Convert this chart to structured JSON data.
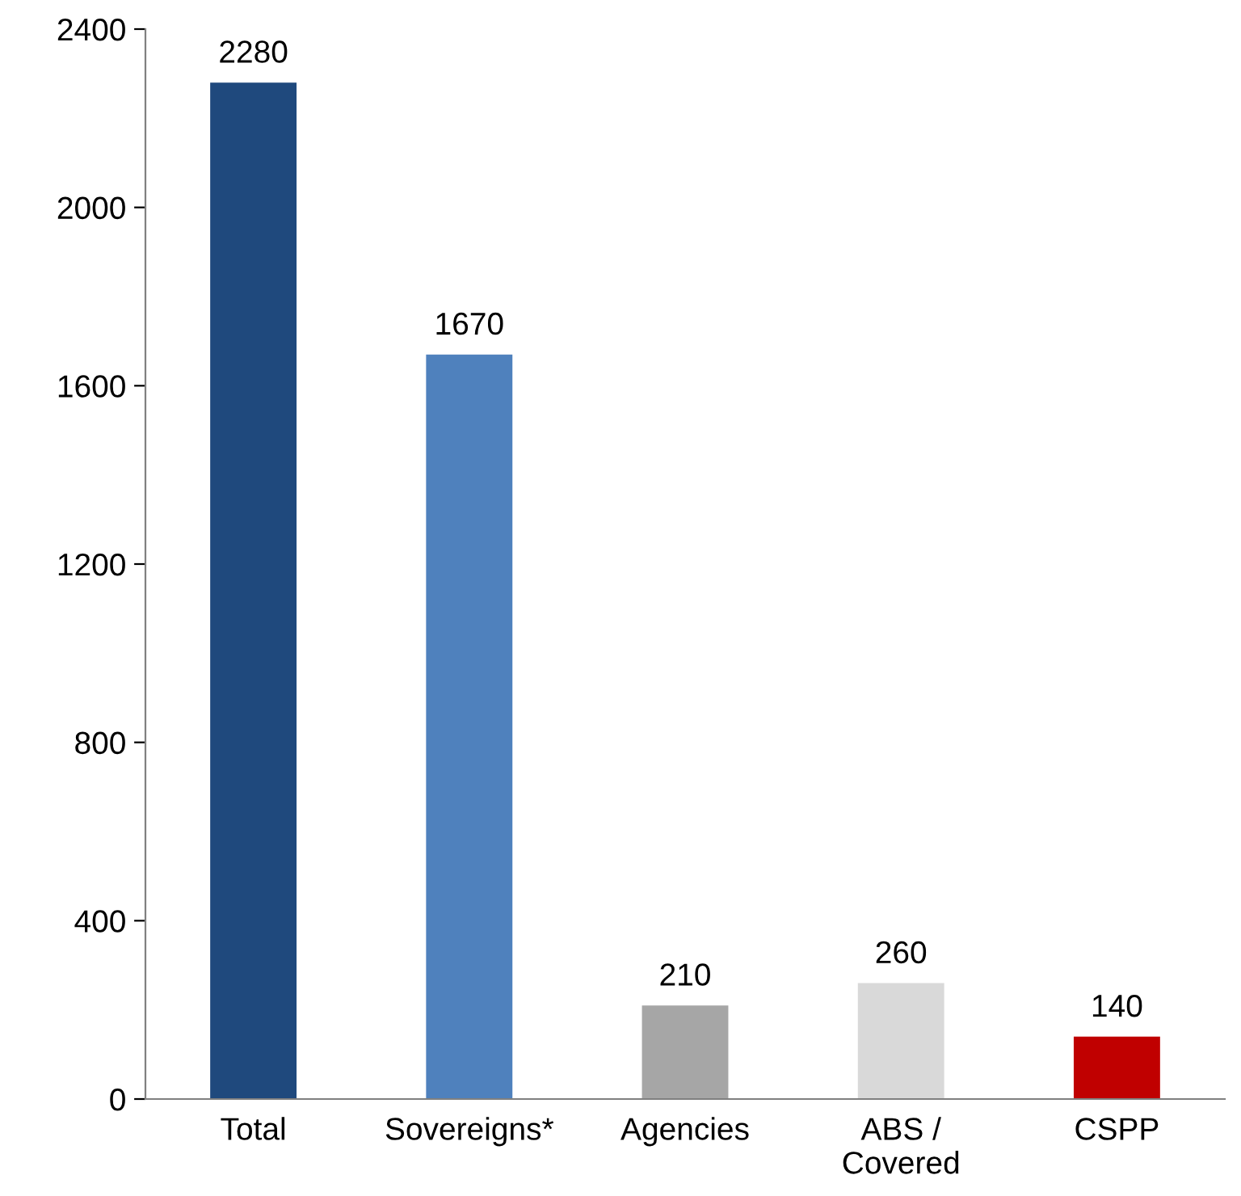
{
  "chart_data": {
    "type": "bar",
    "categories": [
      "Total",
      "Sovereigns*",
      "Agencies",
      "ABS /\nCovered",
      "CSPP"
    ],
    "values": [
      2280,
      1670,
      210,
      260,
      140
    ],
    "colors": [
      "#1f497d",
      "#4f81bd",
      "#a6a6a6",
      "#d9d9d9",
      "#c00000"
    ],
    "ylim": [
      0,
      2400
    ],
    "yticks": [
      0,
      400,
      800,
      1200,
      1600,
      2000,
      2400
    ],
    "data_labels": true,
    "grid": false,
    "legend": false
  }
}
